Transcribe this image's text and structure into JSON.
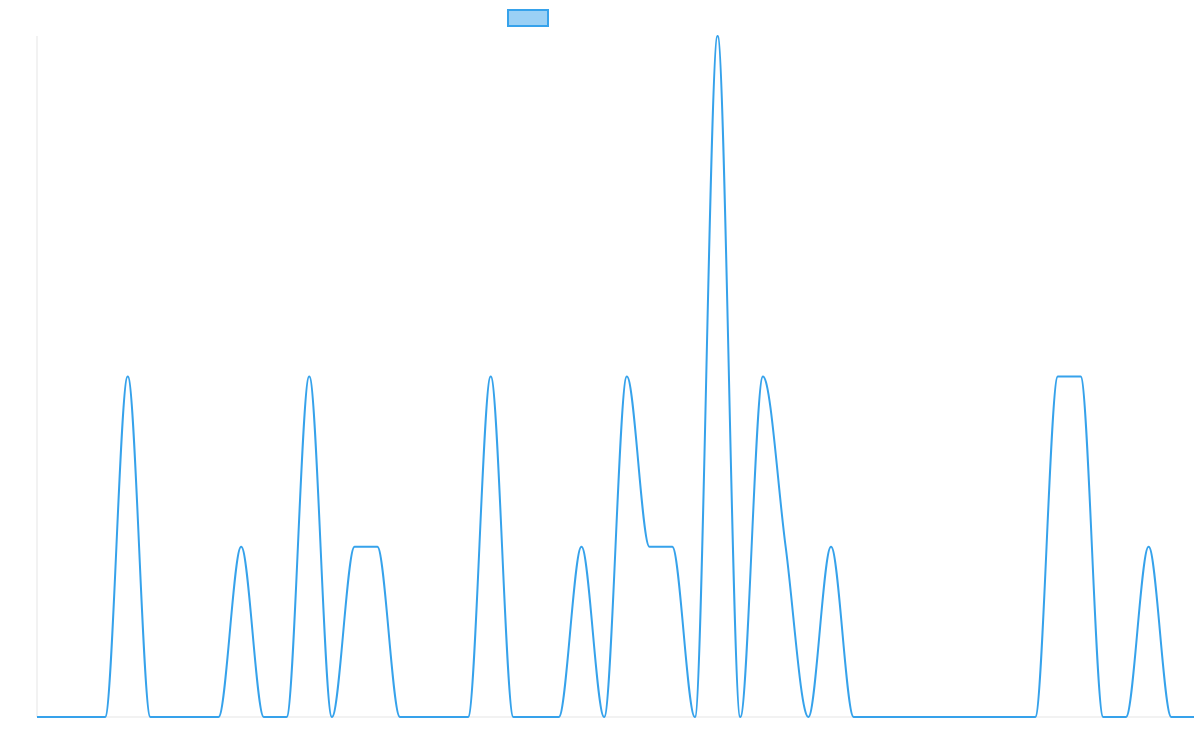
{
  "chart_data": {
    "type": "line",
    "title": "",
    "xlabel": "",
    "ylabel": "",
    "grid": false,
    "legend": {
      "position": "top-center",
      "label": ""
    },
    "colors": {
      "line": "#36a2eb",
      "fill": "#9ad0f5",
      "axis": "#e5e5e5"
    },
    "xlim": [
      0,
      51
    ],
    "ylim": [
      0,
      3
    ],
    "series": [
      {
        "name": "",
        "x": [
          0,
          1,
          2,
          3,
          4,
          5,
          6,
          7,
          8,
          9,
          10,
          11,
          12,
          13,
          14,
          15,
          16,
          17,
          18,
          19,
          20,
          21,
          22,
          23,
          24,
          25,
          26,
          27,
          28,
          29,
          30,
          31,
          32,
          33,
          34,
          35,
          36,
          37,
          38,
          39,
          40,
          41,
          42,
          43,
          44,
          45,
          46,
          47,
          48,
          49,
          50,
          51
        ],
        "values": [
          0,
          0,
          0,
          0,
          1.5,
          0,
          0,
          0,
          0,
          0.75,
          0,
          0,
          1.5,
          0,
          0.75,
          0.75,
          0,
          0,
          0,
          0,
          1.5,
          0,
          0,
          0,
          0.75,
          0,
          1.5,
          0.75,
          0.75,
          0,
          3,
          0,
          1.5,
          0.75,
          0,
          0.75,
          0,
          0,
          0,
          0,
          0,
          0,
          0,
          0,
          0,
          1.5,
          1.5,
          0,
          0,
          0.75,
          0,
          0
        ]
      }
    ]
  }
}
